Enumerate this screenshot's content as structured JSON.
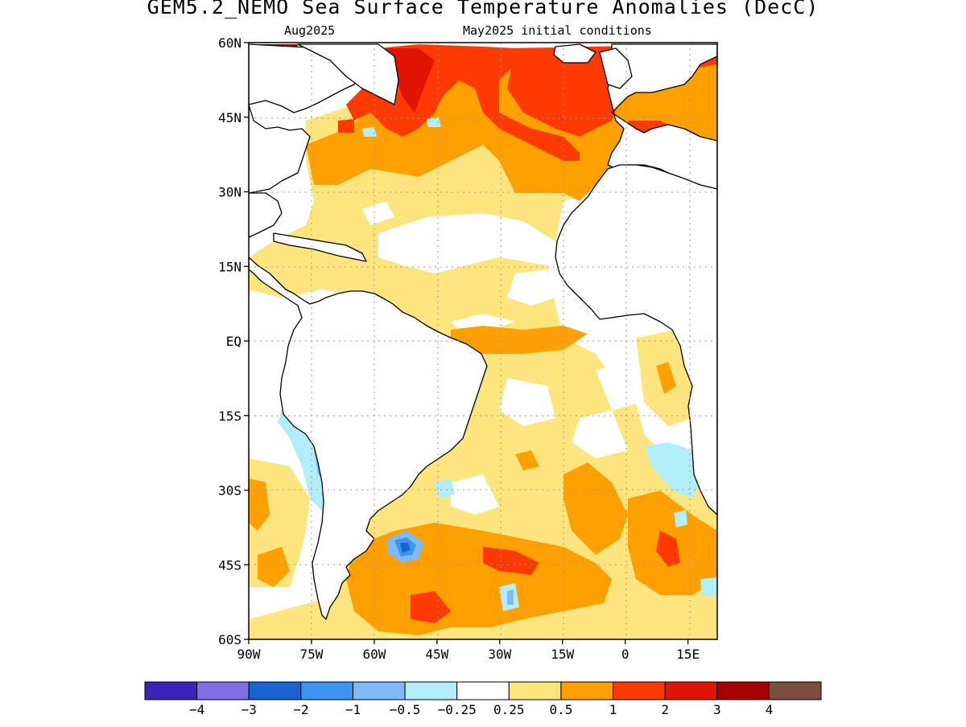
{
  "title": "GEM5.2_NEMO Sea Surface Temperature Anomalies (DecC)",
  "subtitle_left": "Aug2025",
  "subtitle_right": "May2025 initial conditions",
  "map": {
    "lon_range": [
      -90,
      22
    ],
    "lat_range": [
      -60,
      60
    ],
    "lat_ticks": [
      {
        "value": 60,
        "label": "60N"
      },
      {
        "value": 45,
        "label": "45N"
      },
      {
        "value": 30,
        "label": "30N"
      },
      {
        "value": 15,
        "label": "15N"
      },
      {
        "value": 0,
        "label": "EQ"
      },
      {
        "value": -15,
        "label": "15S"
      },
      {
        "value": -30,
        "label": "30S"
      },
      {
        "value": -45,
        "label": "45S"
      },
      {
        "value": -60,
        "label": "60S"
      }
    ],
    "lon_ticks": [
      {
        "value": -90,
        "label": "90W"
      },
      {
        "value": -75,
        "label": "75W"
      },
      {
        "value": -60,
        "label": "60W"
      },
      {
        "value": -45,
        "label": "45W"
      },
      {
        "value": -30,
        "label": "30W"
      },
      {
        "value": -15,
        "label": "15W"
      },
      {
        "value": 0,
        "label": "0"
      },
      {
        "value": 15,
        "label": "15E"
      }
    ],
    "grid": true
  },
  "colorbar": {
    "colors": [
      "#3a24b8",
      "#7f6ee8",
      "#1664d0",
      "#3a95f0",
      "#7dbaf7",
      "#b2eefa",
      "#ffffff",
      "#fee57e",
      "#ffa000",
      "#ff3a00",
      "#e01400",
      "#a40000",
      "#7b4d40"
    ],
    "labels": [
      "−4",
      "−3",
      "−2",
      "−1",
      "−0.5",
      "−0.25",
      "0.25",
      "0.5",
      "1",
      "2",
      "3",
      "4"
    ]
  }
}
